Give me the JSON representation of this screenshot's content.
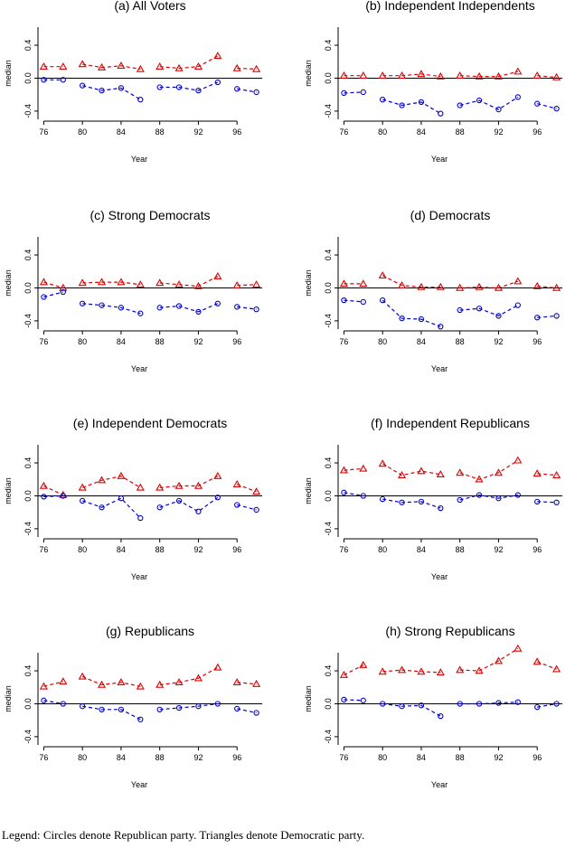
{
  "chart_data": [
    {
      "type": "line",
      "title": "(a) All Voters",
      "xlabel": "Year",
      "ylabel": "median",
      "x": [
        76,
        78,
        80,
        82,
        84,
        86,
        88,
        90,
        92,
        94,
        96,
        98
      ],
      "xticks": [
        76,
        80,
        84,
        88,
        92,
        96
      ],
      "yticks": [
        -0.4,
        0.0,
        0.4
      ],
      "ylim": [
        -0.5,
        0.62
      ],
      "series": [
        {
          "marker": "triangle",
          "color": "#dd0000",
          "values": [
            0.14,
            0.14,
            0.17,
            0.13,
            0.15,
            0.11,
            0.14,
            0.12,
            0.14,
            0.27,
            0.12,
            0.11
          ]
        },
        {
          "marker": "circle",
          "color": "#0000cc",
          "values": [
            -0.02,
            -0.02,
            -0.09,
            -0.15,
            -0.12,
            -0.26,
            -0.11,
            -0.11,
            -0.15,
            -0.05,
            -0.13,
            -0.17
          ]
        }
      ]
    },
    {
      "type": "line",
      "title": "(b) Independent Independents",
      "xlabel": "Year",
      "ylabel": "median",
      "x": [
        76,
        78,
        80,
        82,
        84,
        86,
        88,
        90,
        92,
        94,
        96,
        98
      ],
      "xticks": [
        76,
        80,
        84,
        88,
        92,
        96
      ],
      "yticks": [
        -0.4,
        0.0,
        0.4
      ],
      "ylim": [
        -0.5,
        0.62
      ],
      "series": [
        {
          "marker": "triangle",
          "color": "#dd0000",
          "values": [
            0.03,
            0.03,
            0.03,
            0.03,
            0.05,
            0.02,
            0.03,
            0.02,
            0.02,
            0.08,
            0.03,
            0.01
          ]
        },
        {
          "marker": "circle",
          "color": "#0000cc",
          "values": [
            -0.18,
            -0.17,
            -0.26,
            -0.33,
            -0.29,
            -0.43,
            -0.33,
            -0.27,
            -0.38,
            -0.23,
            -0.31,
            -0.37
          ]
        }
      ]
    },
    {
      "type": "line",
      "title": "(c) Strong Democrats",
      "xlabel": "Year",
      "ylabel": "median",
      "x": [
        76,
        78,
        80,
        82,
        84,
        86,
        88,
        90,
        92,
        94,
        96,
        98
      ],
      "xticks": [
        76,
        80,
        84,
        88,
        92,
        96
      ],
      "yticks": [
        -0.4,
        0.0,
        0.4
      ],
      "ylim": [
        -0.5,
        0.62
      ],
      "series": [
        {
          "marker": "triangle",
          "color": "#dd0000",
          "values": [
            0.07,
            0.0,
            0.06,
            0.07,
            0.07,
            0.04,
            0.06,
            0.04,
            0.02,
            0.14,
            0.03,
            0.04
          ]
        },
        {
          "marker": "circle",
          "color": "#0000cc",
          "values": [
            -0.11,
            -0.05,
            -0.19,
            -0.21,
            -0.24,
            -0.31,
            -0.24,
            -0.22,
            -0.29,
            -0.19,
            -0.23,
            -0.26
          ]
        }
      ]
    },
    {
      "type": "line",
      "title": "(d) Democrats",
      "xlabel": "Year",
      "ylabel": "median",
      "x": [
        76,
        78,
        80,
        82,
        84,
        86,
        88,
        90,
        92,
        94,
        96,
        98
      ],
      "xticks": [
        76,
        80,
        84,
        88,
        92,
        96
      ],
      "yticks": [
        -0.4,
        0.0,
        0.4
      ],
      "ylim": [
        -0.5,
        0.62
      ],
      "series": [
        {
          "marker": "triangle",
          "color": "#dd0000",
          "values": [
            0.05,
            0.05,
            0.15,
            0.03,
            0.01,
            0.01,
            0.0,
            0.01,
            0.0,
            0.08,
            0.02,
            0.0
          ]
        },
        {
          "marker": "circle",
          "color": "#0000cc",
          "values": [
            -0.15,
            -0.17,
            -0.15,
            -0.37,
            -0.38,
            -0.47,
            -0.27,
            -0.25,
            -0.34,
            -0.21,
            -0.36,
            -0.34
          ]
        }
      ]
    },
    {
      "type": "line",
      "title": "(e) Independent Democrats",
      "xlabel": "Year",
      "ylabel": "median",
      "x": [
        76,
        78,
        80,
        82,
        84,
        86,
        88,
        90,
        92,
        94,
        96,
        98
      ],
      "xticks": [
        76,
        80,
        84,
        88,
        92,
        96
      ],
      "yticks": [
        -0.4,
        0.0,
        0.4
      ],
      "ylim": [
        -0.5,
        0.62
      ],
      "series": [
        {
          "marker": "triangle",
          "color": "#dd0000",
          "values": [
            0.12,
            0.01,
            0.1,
            0.19,
            0.24,
            0.1,
            0.1,
            0.12,
            0.12,
            0.24,
            0.14,
            0.05
          ]
        },
        {
          "marker": "circle",
          "color": "#0000cc",
          "values": [
            -0.01,
            0.0,
            -0.06,
            -0.14,
            -0.03,
            -0.27,
            -0.14,
            -0.06,
            -0.19,
            -0.02,
            -0.11,
            -0.17
          ]
        }
      ]
    },
    {
      "type": "line",
      "title": "(f) Independent Republicans",
      "xlabel": "Year",
      "ylabel": "median",
      "x": [
        76,
        78,
        80,
        82,
        84,
        86,
        88,
        90,
        92,
        94,
        96,
        98
      ],
      "xticks": [
        76,
        80,
        84,
        88,
        92,
        96
      ],
      "yticks": [
        -0.4,
        0.0,
        0.4
      ],
      "ylim": [
        -0.5,
        0.62
      ],
      "series": [
        {
          "marker": "triangle",
          "color": "#dd0000",
          "values": [
            0.31,
            0.33,
            0.39,
            0.25,
            0.3,
            0.26,
            0.28,
            0.2,
            0.28,
            0.43,
            0.27,
            0.25
          ]
        },
        {
          "marker": "circle",
          "color": "#0000cc",
          "values": [
            0.04,
            0.0,
            -0.04,
            -0.08,
            -0.07,
            -0.15,
            -0.05,
            0.01,
            -0.03,
            0.01,
            -0.07,
            -0.08
          ]
        }
      ]
    },
    {
      "type": "line",
      "title": "(g) Republicans",
      "xlabel": "Year",
      "ylabel": "median",
      "x": [
        76,
        78,
        80,
        82,
        84,
        86,
        88,
        90,
        92,
        94,
        96,
        98
      ],
      "xticks": [
        76,
        80,
        84,
        88,
        92,
        96
      ],
      "yticks": [
        -0.4,
        0.0,
        0.4
      ],
      "ylim": [
        -0.5,
        0.62
      ],
      "series": [
        {
          "marker": "triangle",
          "color": "#dd0000",
          "values": [
            0.21,
            0.27,
            0.33,
            0.23,
            0.26,
            0.21,
            0.23,
            0.26,
            0.31,
            0.44,
            0.26,
            0.24
          ]
        },
        {
          "marker": "circle",
          "color": "#0000cc",
          "values": [
            0.04,
            0.0,
            -0.03,
            -0.07,
            -0.07,
            -0.19,
            -0.07,
            -0.05,
            -0.03,
            0.0,
            -0.06,
            -0.11
          ]
        }
      ]
    },
    {
      "type": "line",
      "title": "(h) Strong Republicans",
      "xlabel": "Year",
      "ylabel": "median",
      "x": [
        76,
        78,
        80,
        82,
        84,
        86,
        88,
        90,
        92,
        94,
        96,
        98
      ],
      "xticks": [
        76,
        80,
        84,
        88,
        92,
        96
      ],
      "yticks": [
        -0.4,
        0.0,
        0.4
      ],
      "ylim": [
        -0.5,
        0.62
      ],
      "series": [
        {
          "marker": "triangle",
          "color": "#dd0000",
          "values": [
            0.35,
            0.47,
            0.39,
            0.41,
            0.39,
            0.38,
            0.41,
            0.4,
            0.52,
            0.67,
            0.51,
            0.42
          ]
        },
        {
          "marker": "circle",
          "color": "#0000cc",
          "values": [
            0.05,
            0.04,
            0.0,
            -0.03,
            -0.02,
            -0.15,
            0.0,
            0.0,
            0.01,
            0.02,
            -0.04,
            0.0
          ]
        }
      ]
    }
  ],
  "legend_text": "Legend: Circles denote Republican party. Triangles denote Democratic party."
}
